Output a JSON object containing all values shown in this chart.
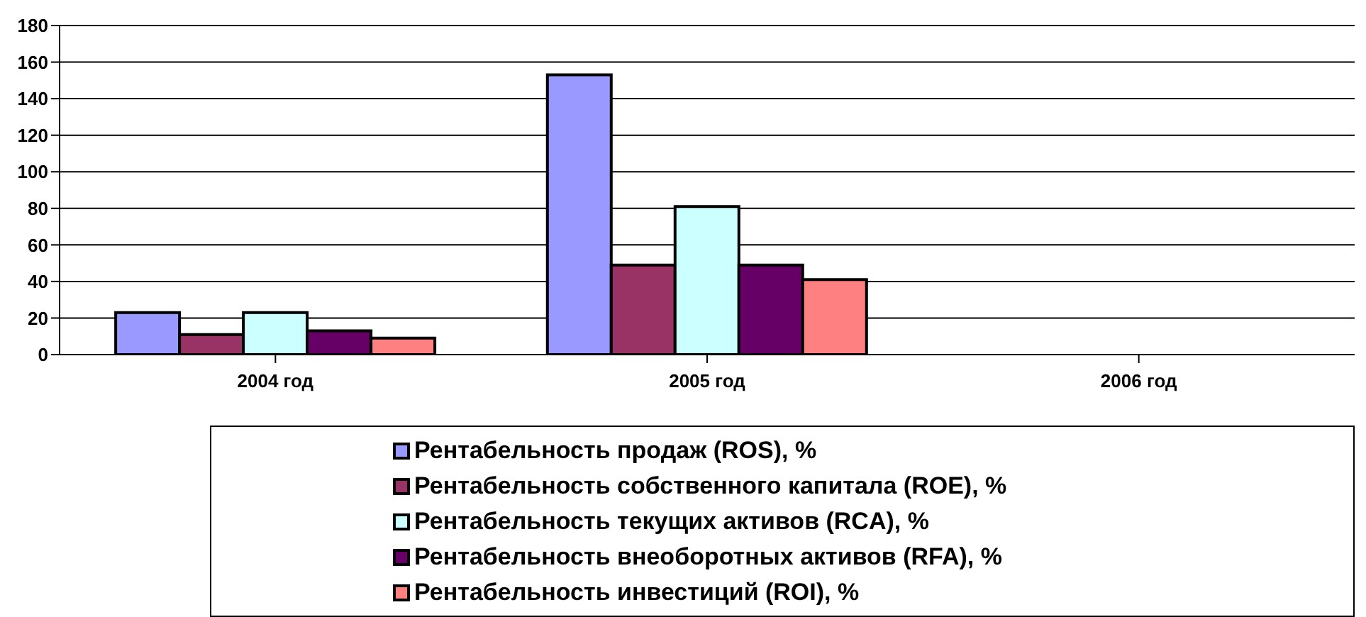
{
  "chart_data": {
    "type": "bar",
    "categories": [
      "2004 год",
      "2005 год",
      "2006 год"
    ],
    "series": [
      {
        "name": "Рентабельность продаж (ROS), %",
        "color": "#9999ff",
        "values": [
          23,
          153,
          0
        ]
      },
      {
        "name": "Рентабельность собственного капитала (ROE), %",
        "color": "#993366",
        "values": [
          11,
          49,
          0
        ]
      },
      {
        "name": "Рентабельность текущих активов (RCA), %",
        "color": "#ccffff",
        "values": [
          23,
          81,
          0
        ]
      },
      {
        "name": "Рентабельность внеоборотных активов (RFA), %",
        "color": "#660066",
        "values": [
          13,
          49,
          0
        ]
      },
      {
        "name": "Рентабельность инвестиций (ROI), %",
        "color": "#ff8080",
        "values": [
          9,
          41,
          0
        ]
      }
    ],
    "ylim": [
      0,
      180
    ],
    "yticks": [
      0,
      20,
      40,
      60,
      80,
      100,
      120,
      140,
      160,
      180
    ],
    "grid": "y",
    "legend": "bottom"
  }
}
